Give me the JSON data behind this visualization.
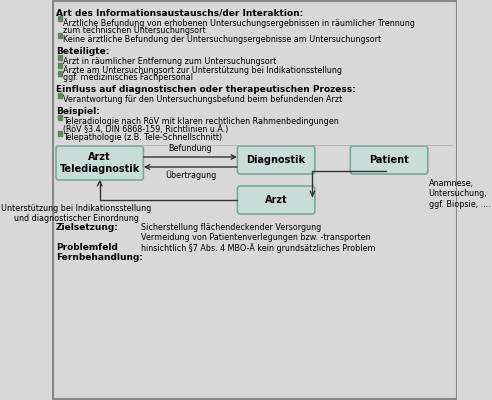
{
  "bg_color": "#d8d8d8",
  "box_color": "#c8dcd8",
  "box_edge_color": "#7aaa96",
  "text_color": "#000000",
  "bullet_color": "#5a8a5a",
  "title1": "Art des Informationsaustauschs/der Interaktion:",
  "title2": "Beteiligte:",
  "title3": "Einfluss auf diagnostischen oder therapeutischen Prozess:",
  "title4": "Beispiel:",
  "box1_label": "Arzt\nTelediagnostik",
  "box2_label": "Diagnostik",
  "box3_label": "Patient",
  "box4_label": "Arzt",
  "arrow1_label": "Befundung",
  "arrow2_label": "Übertragung",
  "arrow3_label": "Unterstützung bei Indikationsstellung\nund diagnostischer Einordnung",
  "arrow4_label": "Anamnese,\nUntersuchung,\nggf. Biopsie, ....",
  "zielsetzung_key": "Zielsetzung:",
  "zielsetzung_val": "Sicherstellung flächendeckender Versorgung\nVermeidung von Patientenverlegungen bzw. -transporten",
  "problemfeld_key": "Problemfeld\nFernbehandlung:",
  "problemfeld_val": "hinsichtlich §7 Abs. 4 MBO-Ä kein grundsätzliches Problem"
}
